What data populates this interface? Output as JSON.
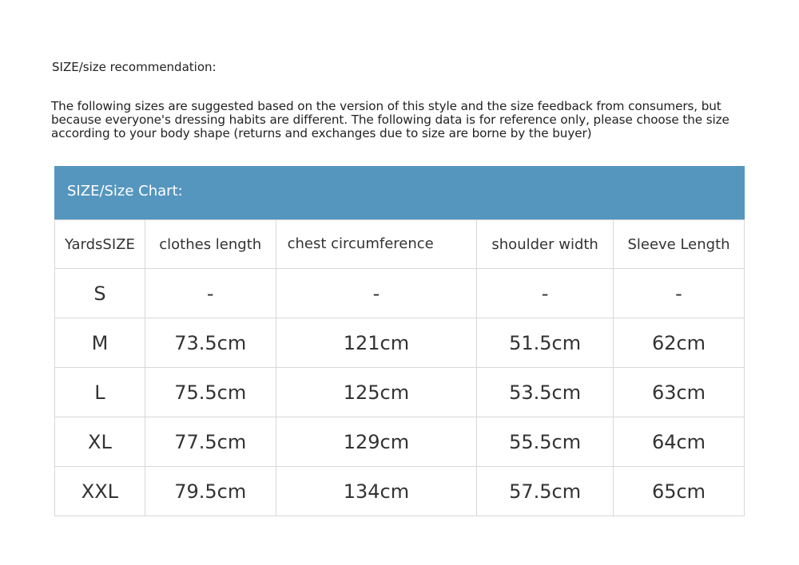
{
  "heading": "SIZE/size recommendation:",
  "intro": "The following sizes are suggested based on the version of this style and the size feedback from consumers, but because everyone's dressing habits are different. The following data is for reference only, please choose the size according to your body shape (returns and exchanges due to size are borne by the buyer)",
  "chart_title": "SIZE/Size Chart:",
  "accent_color": "#5596be",
  "columns": [
    "YardsSIZE",
    "clothes length",
    "chest circumference",
    "shoulder width",
    "Sleeve Length"
  ],
  "rows": [
    [
      "S",
      "-",
      "-",
      "-",
      "-"
    ],
    [
      "M",
      "73.5cm",
      "121cm",
      "51.5cm",
      "62cm"
    ],
    [
      "L",
      "75.5cm",
      "125cm",
      "53.5cm",
      "63cm"
    ],
    [
      "XL",
      "77.5cm",
      "129cm",
      "55.5cm",
      "64cm"
    ],
    [
      "XXL",
      "79.5cm",
      "134cm",
      "57.5cm",
      "65cm"
    ]
  ]
}
